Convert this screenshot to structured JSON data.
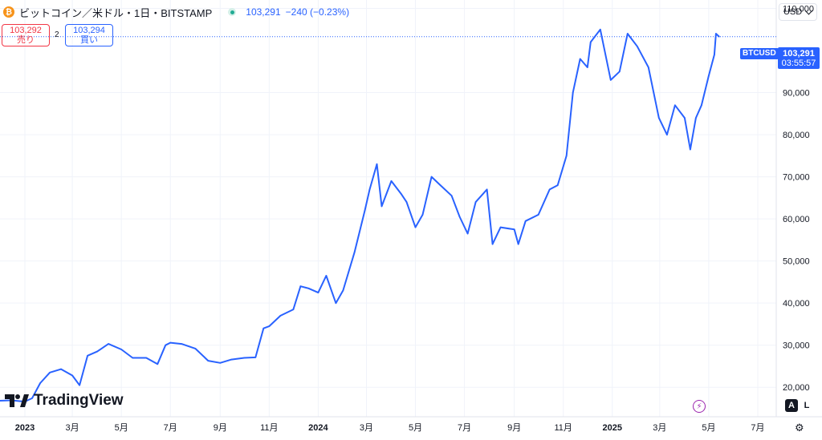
{
  "header": {
    "coin_glyph": "₿",
    "symbol_title": "ビットコイン／米ドル・1日・BITSTAMP",
    "last_price": "103,291",
    "change": "−240 (−0.23%)"
  },
  "quote": {
    "sell_price": "103,292",
    "sell_label": "売り",
    "spread": "2",
    "buy_price": "103,294",
    "buy_label": "買い"
  },
  "currency_selector": "USD",
  "brand": "TradingView",
  "price_tag": {
    "symbol": "BTCUSD",
    "price": "103,291",
    "countdown": "03:55:57"
  },
  "bottom_buttons": {
    "auto": "A",
    "log": "L"
  },
  "colors": {
    "line": "#2962ff",
    "sell": "#f23645",
    "buy": "#2962ff",
    "grid": "#f0f3fa"
  },
  "chart_data": {
    "type": "line",
    "series": [
      {
        "name": "BTCUSD",
        "x": [
          "2022-12-01",
          "2022-12-15",
          "2023-01-01",
          "2023-01-10",
          "2023-01-20",
          "2023-02-01",
          "2023-02-15",
          "2023-03-01",
          "2023-03-10",
          "2023-03-20",
          "2023-04-01",
          "2023-04-15",
          "2023-05-01",
          "2023-05-15",
          "2023-06-01",
          "2023-06-15",
          "2023-06-25",
          "2023-07-01",
          "2023-07-15",
          "2023-08-01",
          "2023-08-17",
          "2023-09-01",
          "2023-09-15",
          "2023-10-01",
          "2023-10-15",
          "2023-10-25",
          "2023-11-01",
          "2023-11-15",
          "2023-12-01",
          "2023-12-10",
          "2023-12-20",
          "2024-01-01",
          "2024-01-11",
          "2024-01-23",
          "2024-02-01",
          "2024-02-15",
          "2024-02-28",
          "2024-03-05",
          "2024-03-14",
          "2024-03-20",
          "2024-04-01",
          "2024-04-13",
          "2024-04-20",
          "2024-05-01",
          "2024-05-10",
          "2024-05-21",
          "2024-06-01",
          "2024-06-15",
          "2024-06-25",
          "2024-07-05",
          "2024-07-15",
          "2024-07-29",
          "2024-08-05",
          "2024-08-15",
          "2024-09-01",
          "2024-09-06",
          "2024-09-15",
          "2024-10-01",
          "2024-10-15",
          "2024-10-25",
          "2024-11-05",
          "2024-11-13",
          "2024-11-22",
          "2024-12-01",
          "2024-12-05",
          "2024-12-17",
          "2024-12-30",
          "2025-01-10",
          "2025-01-20",
          "2025-02-01",
          "2025-02-15",
          "2025-02-28",
          "2025-03-10",
          "2025-03-20",
          "2025-04-01",
          "2025-04-08",
          "2025-04-15",
          "2025-04-22",
          "2025-05-01",
          "2025-05-08",
          "2025-05-10",
          "2025-05-14"
        ],
        "y": [
          16800,
          16900,
          16600,
          17400,
          21000,
          23500,
          24300,
          22800,
          20500,
          27500,
          28500,
          30300,
          29000,
          27000,
          27000,
          25500,
          30000,
          30600,
          30300,
          29200,
          26300,
          25800,
          26600,
          27000,
          27100,
          34000,
          34500,
          37000,
          38500,
          44000,
          43500,
          42500,
          46500,
          40000,
          43000,
          52000,
          62000,
          67000,
          73000,
          63000,
          69000,
          66000,
          64000,
          58000,
          61000,
          70000,
          68000,
          65500,
          60500,
          56500,
          64000,
          67000,
          54000,
          58000,
          57500,
          54000,
          59500,
          61000,
          67000,
          68000,
          75000,
          90000,
          98000,
          96000,
          102000,
          105000,
          93000,
          95000,
          104000,
          101000,
          96000,
          84000,
          80000,
          87000,
          84000,
          76500,
          84000,
          87000,
          94000,
          99000,
          104000,
          103291
        ]
      }
    ],
    "xlim": [
      "2022-12-01",
      "2025-07-24"
    ],
    "ylim": [
      13000,
      112000
    ],
    "x_tick_labels": [
      "2023",
      "3月",
      "5月",
      "7月",
      "9月",
      "11月",
      "2024",
      "3月",
      "5月",
      "7月",
      "9月",
      "11月",
      "2025",
      "3月",
      "5月",
      "7月"
    ],
    "y_tick_labels": [
      "110,000",
      "90,000",
      "80,000",
      "70,000",
      "60,000",
      "50,000",
      "40,000",
      "30,000",
      "20,000"
    ],
    "y_tick_values": [
      110000,
      90000,
      80000,
      70000,
      60000,
      50000,
      40000,
      30000,
      20000
    ],
    "last_value": 103291,
    "grid": true
  }
}
